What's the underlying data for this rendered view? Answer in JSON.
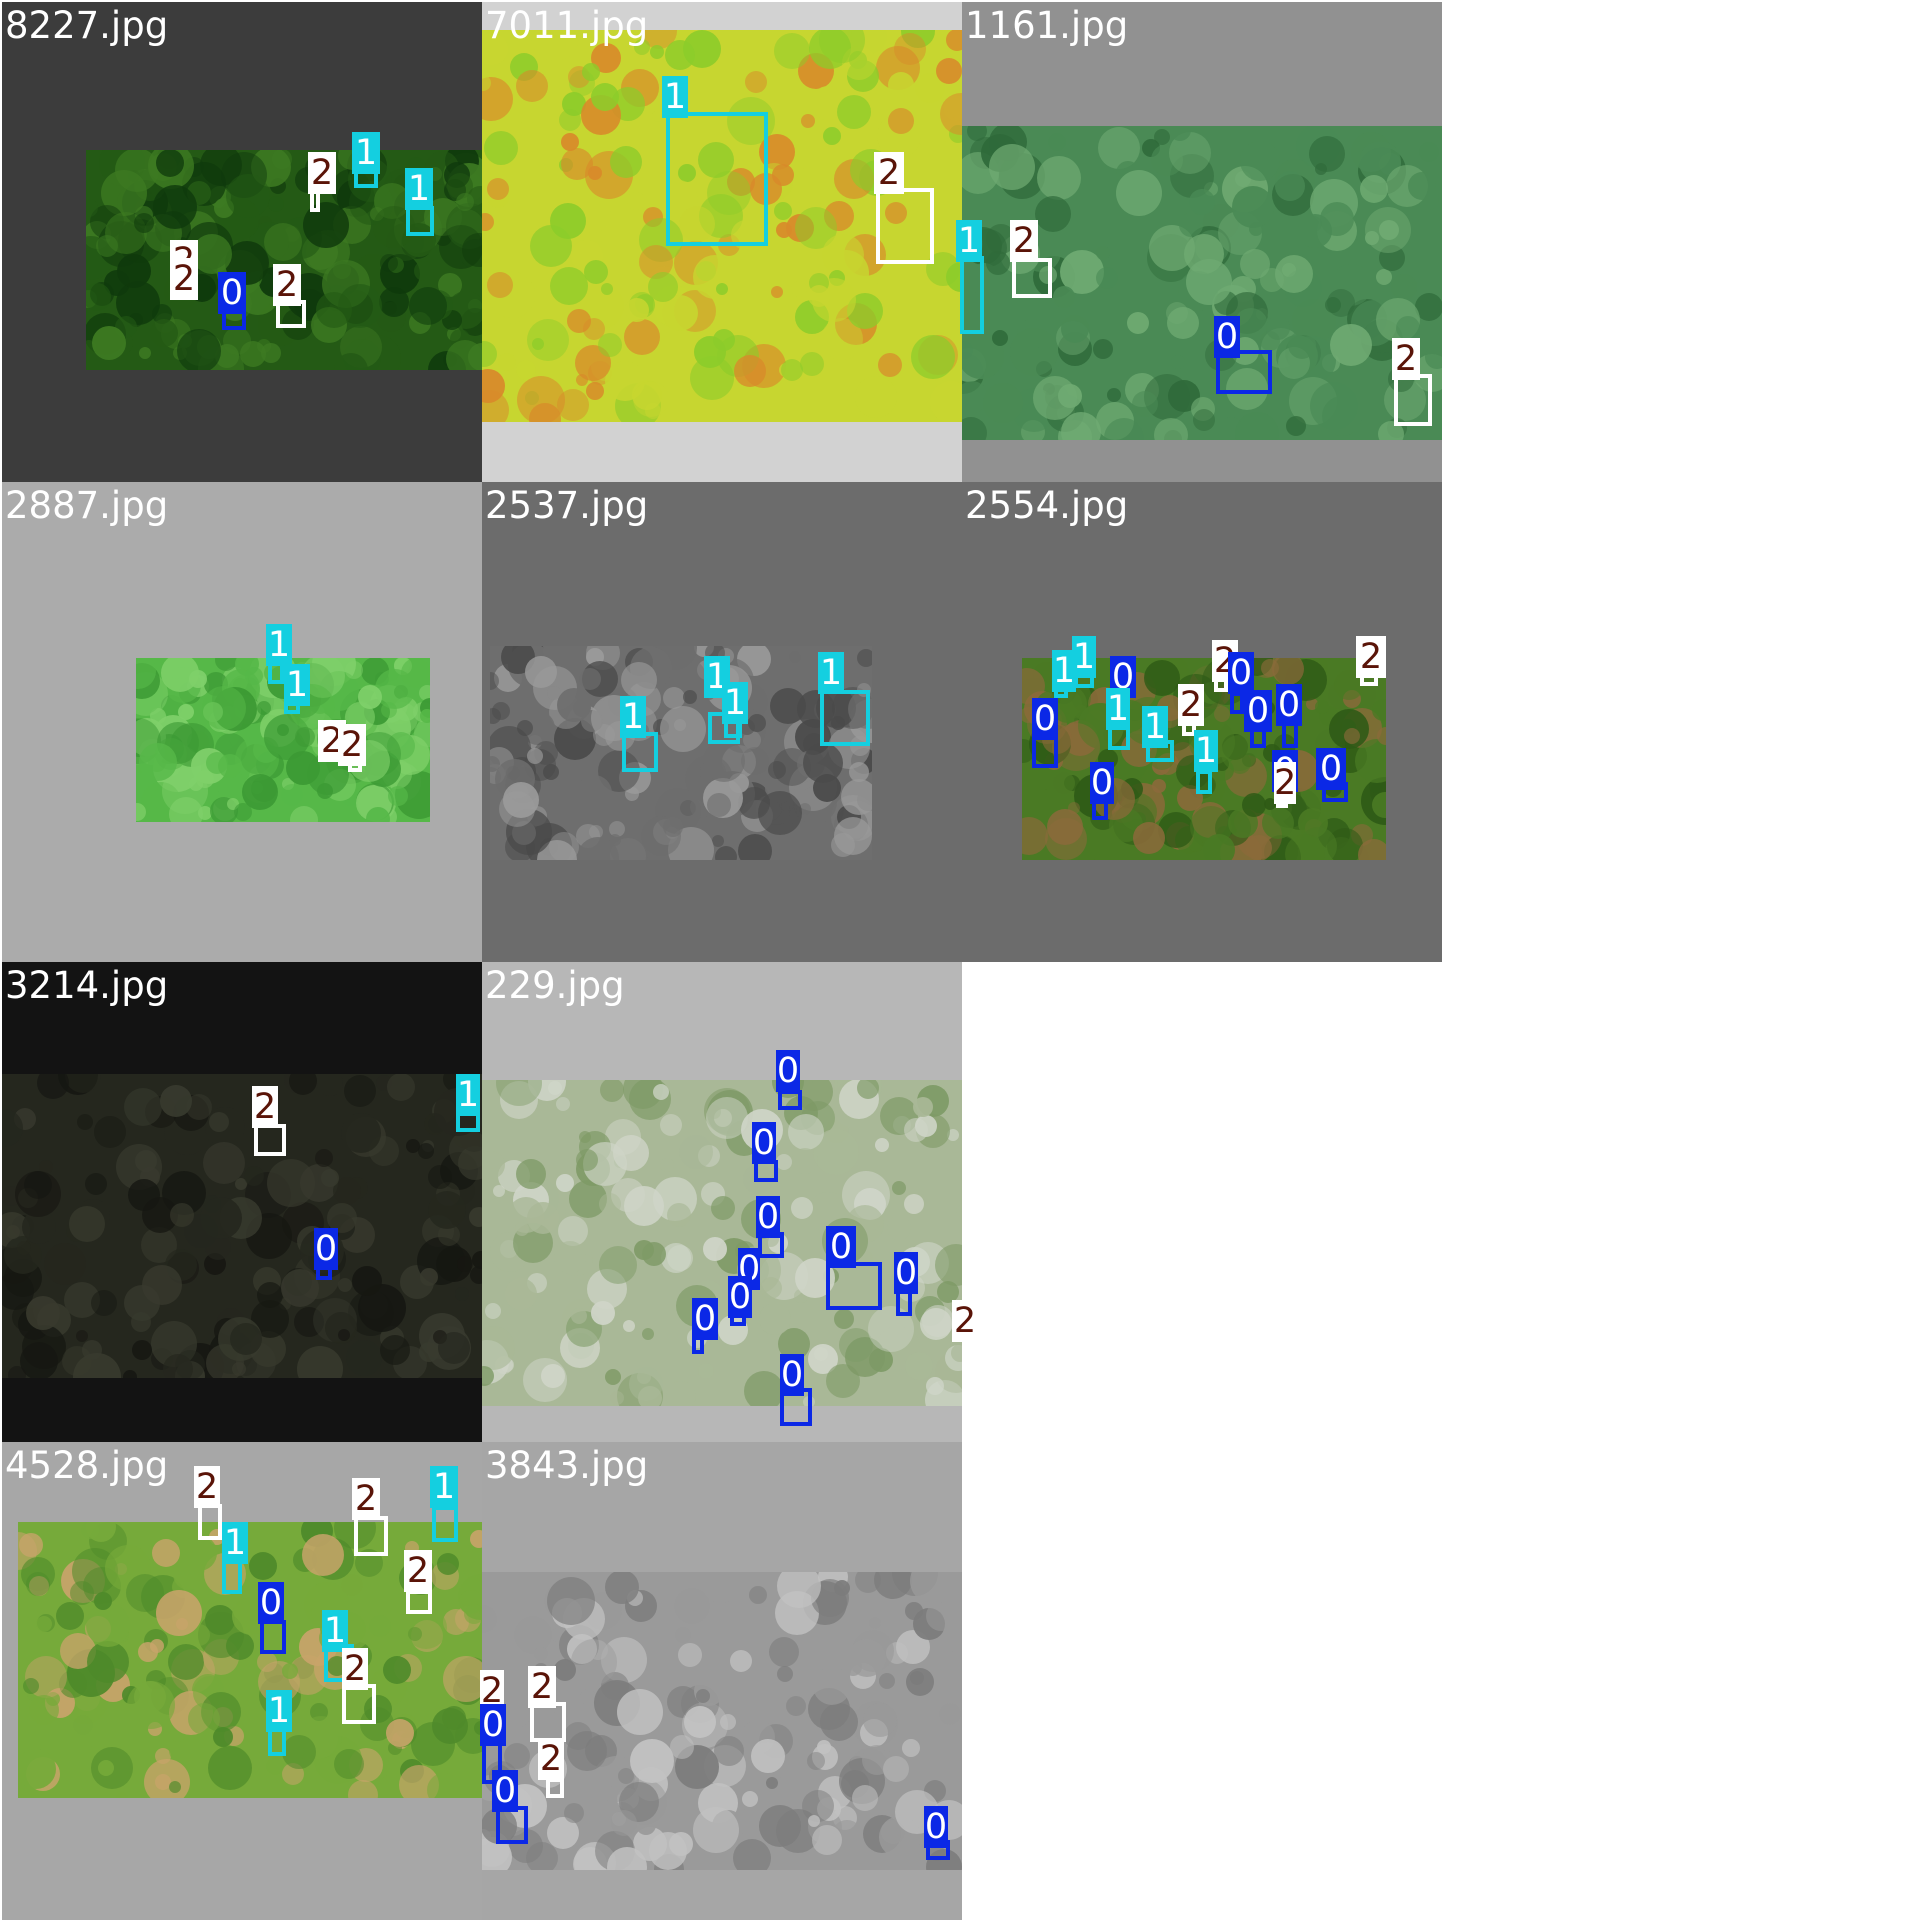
{
  "grid": {
    "rows": 4,
    "cols": 3
  },
  "class_styles": {
    "0": {
      "color": "#0b28e6",
      "label_bg": "#0b28e6",
      "label_fg": "#ffffff"
    },
    "1": {
      "color": "#14cfe0",
      "label_bg": "#14cfe0",
      "label_fg": "#ffffff"
    },
    "2": {
      "color": "#ffffff",
      "label_bg": "#ffffff",
      "label_fg": "#5a1408"
    }
  },
  "tiles": [
    {
      "filename": "8227.jpg",
      "background": "#3c3c3c",
      "photo": "dark green forest canopy",
      "palette": [
        "#0f3a0c",
        "#245a15",
        "#3d7a22"
      ],
      "labels": [
        "1",
        "1",
        "2",
        "2",
        "2",
        "0",
        "2"
      ]
    },
    {
      "filename": "7011.jpg",
      "background": "#d2d2d2",
      "photo": "bright yellow-green canopy with orange patches",
      "palette": [
        "#8ccc2a",
        "#c7d630",
        "#d88a2a"
      ],
      "labels": [
        "1",
        "2",
        "1"
      ]
    },
    {
      "filename": "1161.jpg",
      "background": "#919191",
      "photo": "motion-blurred green canopy",
      "palette": [
        "#2f6a3a",
        "#4a8a55",
        "#6faa72"
      ],
      "labels": [
        "2",
        "0",
        "2"
      ]
    },
    {
      "filename": "2887.jpg",
      "background": "#ababab",
      "photo": "bright green canopy",
      "palette": [
        "#3c9a34",
        "#56b848",
        "#7fd06a"
      ],
      "labels": [
        "1",
        "1",
        "2",
        "2"
      ]
    },
    {
      "filename": "2537.jpg",
      "background": "#6c6c6c",
      "photo": "grayscale canopy",
      "palette": [
        "#4a4a4a",
        "#6e6e6e",
        "#9a9a9a"
      ],
      "labels": [
        "1",
        "1",
        "1",
        "1"
      ]
    },
    {
      "filename": "2554.jpg",
      "background": "#6c6c6c",
      "photo": "green canopy with brown trail",
      "palette": [
        "#2e5a16",
        "#4a7a24",
        "#8a6a3a"
      ],
      "labels": [
        "1",
        "1",
        "0",
        "2",
        "0",
        "2",
        "1",
        "0",
        "0",
        "2",
        "0",
        "1",
        "1",
        "0",
        "0",
        "2",
        "0"
      ]
    },
    {
      "filename": "3214.jpg",
      "background": "#131313",
      "photo": "very dark canopy",
      "palette": [
        "#161712",
        "#25271e",
        "#383a2e"
      ],
      "labels": [
        "2",
        "1",
        "0"
      ]
    },
    {
      "filename": "229.jpg",
      "background": "#b7b7b7",
      "photo": "pale washed-out canopy with dry creek",
      "palette": [
        "#cfd5c8",
        "#a9b897",
        "#7e9a66"
      ],
      "labels": [
        "0",
        "0",
        "0",
        "0",
        "0",
        "0",
        "0",
        "0",
        "2",
        "0"
      ]
    },
    {
      "filename": "4528.jpg",
      "background": "#a7a7a7",
      "photo": "green canopy with clearing",
      "palette": [
        "#4e8a2a",
        "#76aa3a",
        "#c8a46a"
      ],
      "labels": [
        "2",
        "1",
        "2",
        "1",
        "2",
        "0",
        "1",
        "2",
        "1"
      ]
    },
    {
      "filename": "3843.jpg",
      "background": "#a6a6a6",
      "photo": "blurred grayscale canopy",
      "palette": [
        "#7c7c7c",
        "#9a9a9a",
        "#c2c2c2"
      ],
      "labels": [
        "2",
        "2",
        "0",
        "2",
        "0",
        "0"
      ]
    }
  ]
}
